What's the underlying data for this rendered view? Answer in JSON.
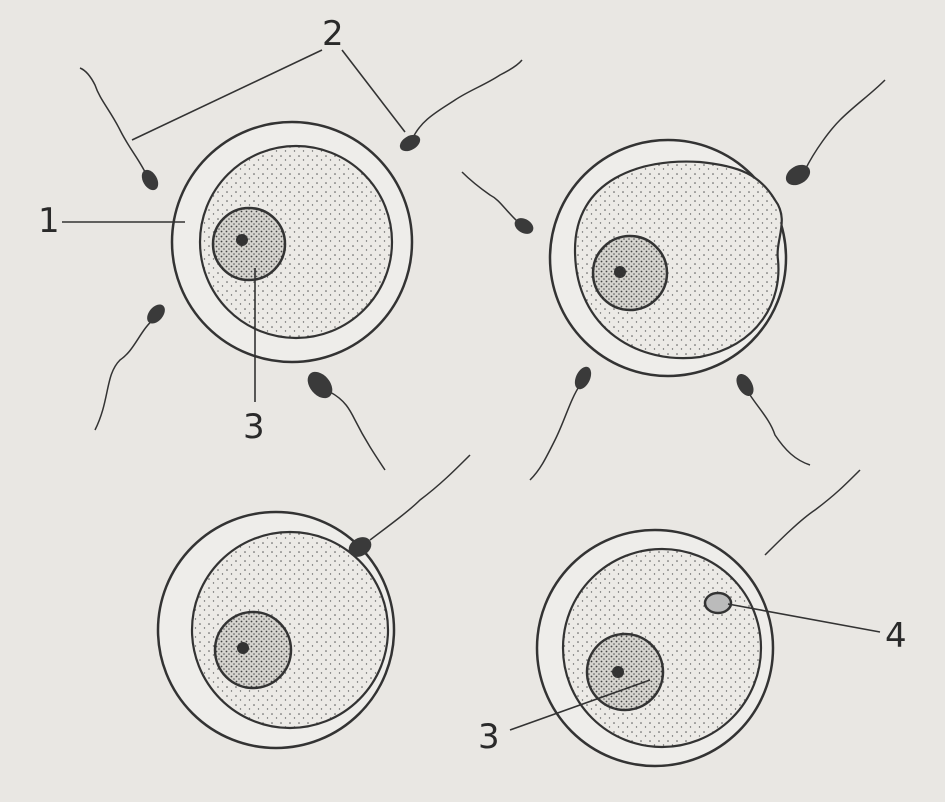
{
  "labels": [
    "1",
    "2",
    "3",
    "3",
    "4"
  ]
}
